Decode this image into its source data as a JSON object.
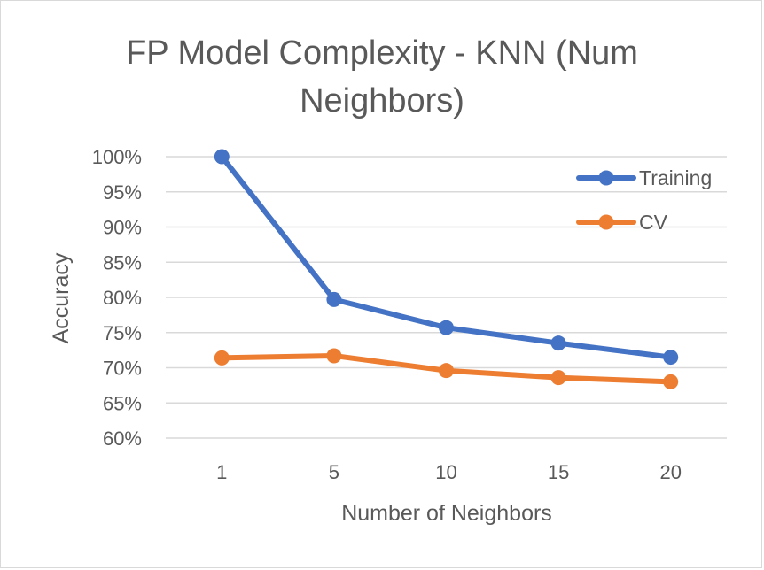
{
  "chart_data": {
    "type": "line",
    "title_lines": [
      "FP Model Complexity - KNN (Num",
      "Neighbors)"
    ],
    "xlabel": "Number of Neighbors",
    "ylabel": "Accuracy",
    "categories": [
      "1",
      "5",
      "10",
      "15",
      "20"
    ],
    "ylim": [
      0.6,
      1.0
    ],
    "y_ticks": [
      {
        "value": 1.0,
        "label": "100%"
      },
      {
        "value": 0.95,
        "label": "95%"
      },
      {
        "value": 0.9,
        "label": "90%"
      },
      {
        "value": 0.85,
        "label": "85%"
      },
      {
        "value": 0.8,
        "label": "80%"
      },
      {
        "value": 0.75,
        "label": "75%"
      },
      {
        "value": 0.7,
        "label": "70%"
      },
      {
        "value": 0.65,
        "label": "65%"
      },
      {
        "value": 0.6,
        "label": "60%"
      }
    ],
    "grid": true,
    "legend_position": "top-right",
    "series": [
      {
        "name": "Training",
        "color": "#4472c4",
        "values": [
          1.0,
          0.797,
          0.757,
          0.735,
          0.715
        ]
      },
      {
        "name": "CV",
        "color": "#ed7d31",
        "values": [
          0.714,
          0.717,
          0.696,
          0.686,
          0.68
        ]
      }
    ]
  }
}
